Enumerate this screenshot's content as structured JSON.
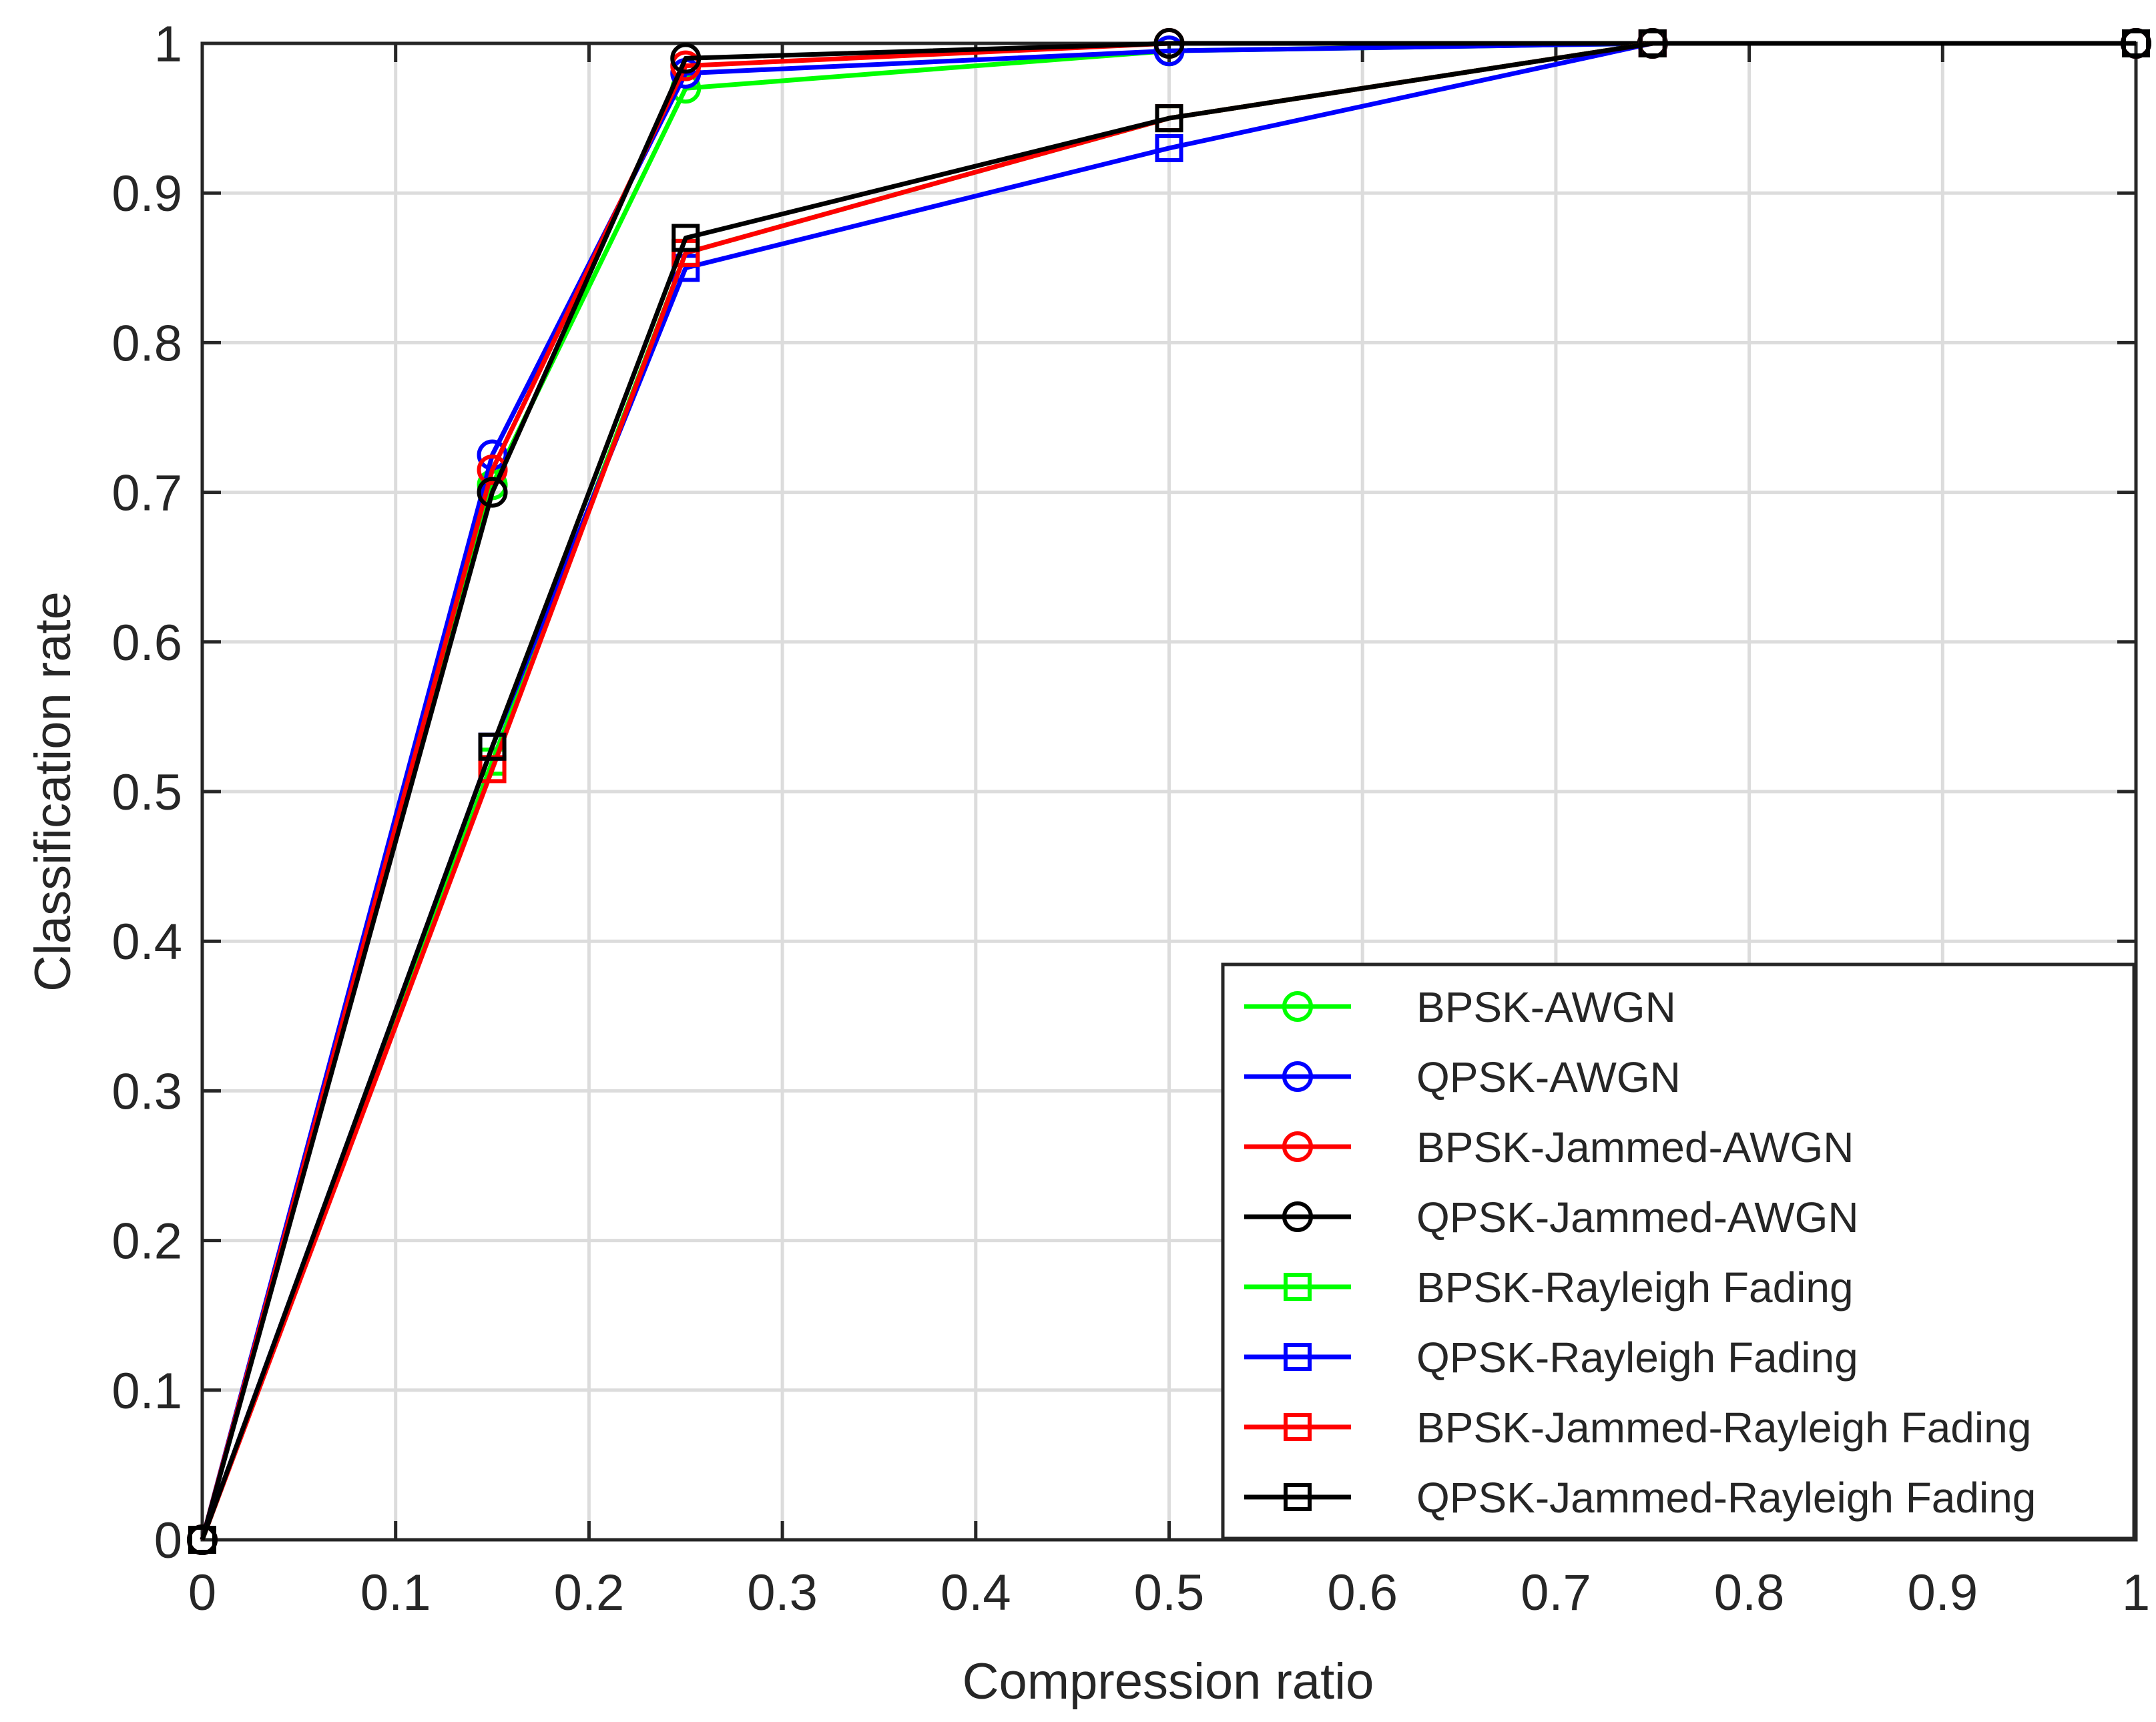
{
  "chart_data": {
    "type": "line",
    "title": "",
    "xlabel": "Compression ratio",
    "ylabel": "Classification rate",
    "xlim": [
      0,
      1
    ],
    "ylim": [
      0,
      1
    ],
    "xticks": [
      0,
      0.1,
      0.2,
      0.3,
      0.4,
      0.5,
      0.6,
      0.7,
      0.8,
      0.9,
      1
    ],
    "yticks": [
      0,
      0.1,
      0.2,
      0.3,
      0.4,
      0.5,
      0.6,
      0.7,
      0.8,
      0.9,
      1
    ],
    "xtick_labels": [
      "0",
      "0.1",
      "0.2",
      "0.3",
      "0.4",
      "0.5",
      "0.6",
      "0.7",
      "0.8",
      "0.9",
      "1"
    ],
    "ytick_labels": [
      "0",
      "0.1",
      "0.2",
      "0.3",
      "0.4",
      "0.5",
      "0.6",
      "0.7",
      "0.8",
      "0.9",
      "1"
    ],
    "grid": true,
    "legend_position": "bottom-right",
    "x": [
      0,
      0.15,
      0.25,
      0.5,
      0.75,
      1
    ],
    "series": [
      {
        "name": "BPSK-AWGN",
        "color": "#00ff00",
        "marker": "circle",
        "values": [
          0,
          0.705,
          0.97,
          0.995,
          1,
          1
        ]
      },
      {
        "name": "QPSK-AWGN",
        "color": "#0000ff",
        "marker": "circle",
        "values": [
          0,
          0.725,
          0.98,
          0.995,
          1,
          1
        ]
      },
      {
        "name": "BPSK-Jammed-AWGN",
        "color": "#ff0000",
        "marker": "circle",
        "values": [
          0,
          0.715,
          0.985,
          1,
          1,
          1
        ]
      },
      {
        "name": "QPSK-Jammed-AWGN",
        "color": "#000000",
        "marker": "circle",
        "values": [
          0,
          0.7,
          0.99,
          1,
          1,
          1
        ]
      },
      {
        "name": "BPSK-Rayleigh Fading",
        "color": "#00ff00",
        "marker": "square",
        "values": [
          0,
          0.52,
          0.86,
          0.95,
          1,
          1
        ]
      },
      {
        "name": "QPSK-Rayleigh Fading",
        "color": "#0000ff",
        "marker": "square",
        "values": [
          0,
          0.53,
          0.85,
          0.93,
          1,
          1
        ]
      },
      {
        "name": "BPSK-Jammed-Rayleigh Fading",
        "color": "#ff0000",
        "marker": "square",
        "values": [
          0,
          0.515,
          0.86,
          0.95,
          1,
          1
        ]
      },
      {
        "name": "QPSK-Jammed-Rayleigh Fading",
        "color": "#000000",
        "marker": "square",
        "values": [
          0,
          0.53,
          0.87,
          0.95,
          1,
          1
        ]
      }
    ]
  }
}
